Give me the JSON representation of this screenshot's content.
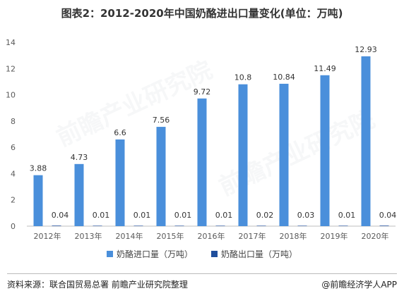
{
  "title": "图表2：2012-2020年中国奶酪进出口量变化(单位：万吨)",
  "watermark_text": "前瞻产业研究院",
  "source": "资料来源：联合国贸易总署 前瞻产业研究院整理",
  "brand": "@前瞻经济学人APP",
  "chart_data": {
    "type": "bar",
    "categories": [
      "2012年",
      "2013年",
      "2014年",
      "2015年",
      "2016年",
      "2017年",
      "2018年",
      "2019年",
      "2020年"
    ],
    "series": [
      {
        "name": "奶酪进口量（万吨）",
        "color": "#4a8fdb",
        "values": [
          3.88,
          4.73,
          6.6,
          7.56,
          9.72,
          10.8,
          10.84,
          11.49,
          12.93
        ],
        "labels": [
          "3.88",
          "4.73",
          "6.6",
          "7.56",
          "9.72",
          "10.8",
          "10.84",
          "11.49",
          "12.93"
        ]
      },
      {
        "name": "奶酪出口量（万吨）",
        "color": "#1f4e9c",
        "values": [
          0.04,
          0.01,
          0.01,
          0.01,
          0.01,
          0.02,
          0.03,
          0.01,
          0.04
        ],
        "labels": [
          "0.04",
          "0.01",
          "0.01",
          "0.01",
          "0.01",
          "0.02",
          "0.03",
          "0.01",
          "0.04"
        ]
      }
    ],
    "ylim": [
      0,
      14
    ],
    "yticks": [
      0,
      2,
      4,
      6,
      8,
      10,
      12,
      14
    ],
    "grid": false,
    "legend_position": "bottom"
  }
}
